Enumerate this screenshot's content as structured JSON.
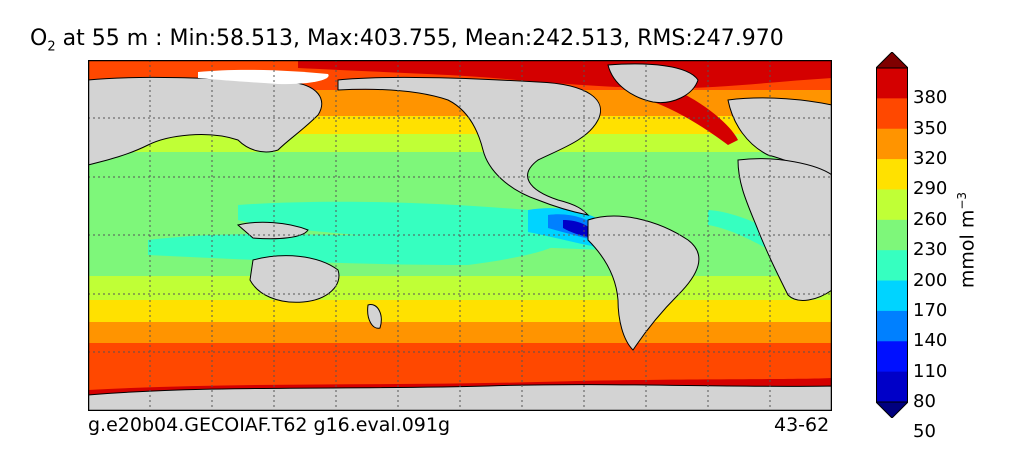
{
  "title": {
    "variable": "O",
    "subscript": "2",
    "text": "at 55 m : Min:58.513, Max:403.755, Mean:242.513, RMS:247.970"
  },
  "footer": {
    "left": "g.e20b04.GECOIAF.T62 g16.eval.091g",
    "right": "43-62"
  },
  "colorbar": {
    "label": "mmol m",
    "label_exp": "−3",
    "ticks": [
      "380",
      "350",
      "320",
      "290",
      "260",
      "230",
      "200",
      "170",
      "140",
      "110",
      "80",
      "50"
    ],
    "colors": [
      "#7f0000",
      "#d40000",
      "#ff4800",
      "#ff9400",
      "#ffe100",
      "#c0ff36",
      "#7ef77a",
      "#36ffc0",
      "#00d4ff",
      "#0080ff",
      "#0010ff",
      "#0000c8",
      "#00007f"
    ],
    "extend": "both"
  },
  "map_colors": {
    "land": "#d3d3d3",
    "ice": "#ffffff",
    "grid": "#555555"
  }
}
